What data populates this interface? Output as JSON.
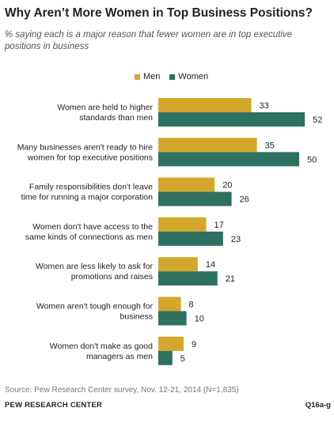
{
  "header": {
    "title": "Why Aren’t More Women in Top Business Positions?",
    "subtitle": "% saying each is a major reason that fewer women are in top executive positions in business"
  },
  "footer": {
    "source": "Source: Pew Research Center survey, Nov. 12-21, 2014 (N=1,835)",
    "org": "PEW RESEARCH CENTER",
    "code": "Q16a-g"
  },
  "colors": {
    "men": "#d4a72c",
    "women": "#2e7160"
  },
  "chart_data": {
    "type": "bar",
    "orientation": "horizontal",
    "title": "Why Aren’t More Women in Top Business Positions?",
    "subtitle": "% saying each is a major reason that fewer women are in top executive positions in business",
    "legend_position": "top",
    "grid": false,
    "xlim": [
      0,
      60
    ],
    "categories": [
      [
        "Women are held to higher",
        "standards than men"
      ],
      [
        "Many businesses aren't ready to hire",
        "women for top executive positions"
      ],
      [
        "Family responsibilities don't leave",
        "time for running a major corporation"
      ],
      [
        "Women don't have access to the",
        "same kinds of connections as men"
      ],
      [
        "Women are less likely to ask for",
        "promotions and raises"
      ],
      [
        "Women aren't tough enough for",
        "business"
      ],
      [
        "Women don't make as good",
        "managers as men"
      ]
    ],
    "series": [
      {
        "name": "Men",
        "values": [
          33,
          35,
          20,
          17,
          14,
          8,
          9
        ]
      },
      {
        "name": "Women",
        "values": [
          52,
          50,
          26,
          23,
          21,
          10,
          5
        ]
      }
    ]
  }
}
